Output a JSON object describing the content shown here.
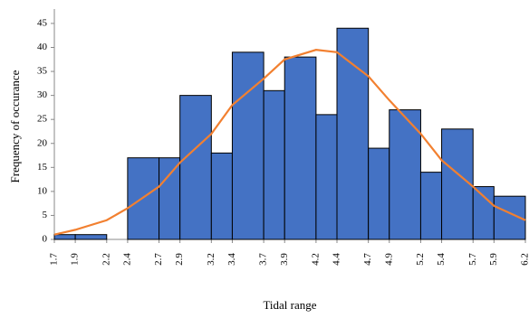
{
  "chart_data": {
    "type": "histogram",
    "xlabel": "Tidal range",
    "ylabel": "Frequency of occurance",
    "bins": [
      1.7,
      1.9,
      2.2,
      2.4,
      2.7,
      2.9,
      3.2,
      3.4,
      3.7,
      3.9,
      4.2,
      4.4,
      4.7,
      4.9,
      5.2,
      5.4,
      5.7,
      5.9,
      6.2
    ],
    "values": [
      1,
      1,
      0,
      17,
      17,
      30,
      18,
      39,
      31,
      38,
      26,
      44,
      19,
      27,
      14,
      23,
      11,
      9
    ],
    "color": "#4472c4",
    "curve": {
      "color": "#f28030",
      "x": [
        1.7,
        1.9,
        2.2,
        2.4,
        2.7,
        2.9,
        3.2,
        3.4,
        3.7,
        3.9,
        4.2,
        4.4,
        4.7,
        4.9,
        5.2,
        5.4,
        5.7,
        5.9,
        6.2
      ],
      "values": [
        1,
        2,
        4,
        6.5,
        11,
        16,
        22,
        28,
        33.5,
        37.5,
        39.5,
        39,
        34,
        29,
        22,
        16.5,
        11,
        7,
        4
      ]
    },
    "xlim": [
      1.7,
      6.2
    ],
    "xticks": [
      1.7,
      1.9,
      2.2,
      2.4,
      2.7,
      2.9,
      3.2,
      3.4,
      3.7,
      3.9,
      4.2,
      4.4,
      4.7,
      4.9,
      5.2,
      5.4,
      5.7,
      5.9,
      6.2
    ],
    "ylim": [
      0,
      48
    ],
    "yticks": [
      0,
      5,
      10,
      15,
      20,
      25,
      30,
      35,
      40,
      45
    ]
  }
}
